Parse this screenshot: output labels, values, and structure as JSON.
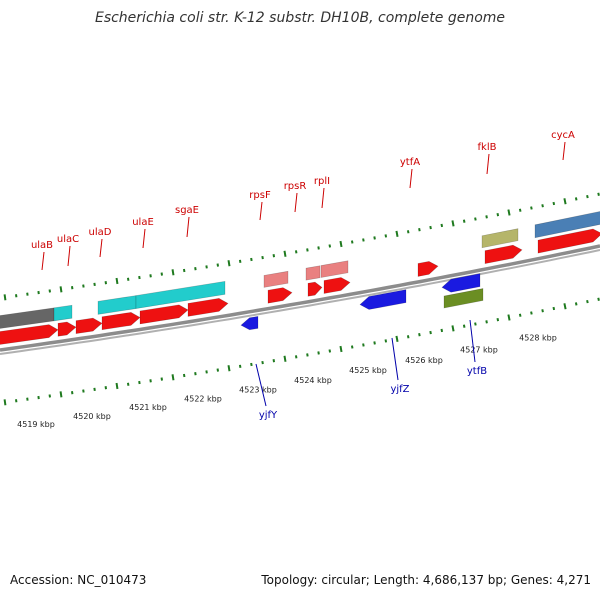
{
  "header": {
    "title": "Escherichia coli str. K-12 substr. DH10B, complete genome"
  },
  "footer": {
    "accession": "Accession: NC_010473",
    "summary": "Topology: circular; Length: 4,686,137 bp; Genes: 4,271"
  },
  "colors": {
    "backbone": "#8c8c8c",
    "tick": "#1f7a1f",
    "label_plus": "#cc0000",
    "label_minus": "#0000aa",
    "cds_red": "#ee1111",
    "rna_pink": "#e98080",
    "cyan": "#22cccc",
    "blue": "#1a1ae0",
    "olive": "#6b8e23",
    "khaki": "#b5b56a",
    "steel": "#4a7fb5",
    "gray": "#666666"
  },
  "scale": {
    "labels": [
      "4519 kbp",
      "4520 kbp",
      "4521 kbp",
      "4522 kbp",
      "4523 kbp",
      "4524 kbp",
      "4525 kbp",
      "4526 kbp",
      "4527 kbp",
      "4528 kbp"
    ]
  },
  "genes_plus": [
    {
      "name": "ulaB"
    },
    {
      "name": "ulaC"
    },
    {
      "name": "ulaD"
    },
    {
      "name": "ulaE"
    },
    {
      "name": "sgaE"
    },
    {
      "name": "rpsF"
    },
    {
      "name": "rpsR"
    },
    {
      "name": "rplI"
    },
    {
      "name": "ytfA"
    },
    {
      "name": "fklB"
    },
    {
      "name": "cycA"
    }
  ],
  "genes_minus": [
    {
      "name": "yjfY"
    },
    {
      "name": "yjfZ"
    },
    {
      "name": "ytfB"
    }
  ]
}
